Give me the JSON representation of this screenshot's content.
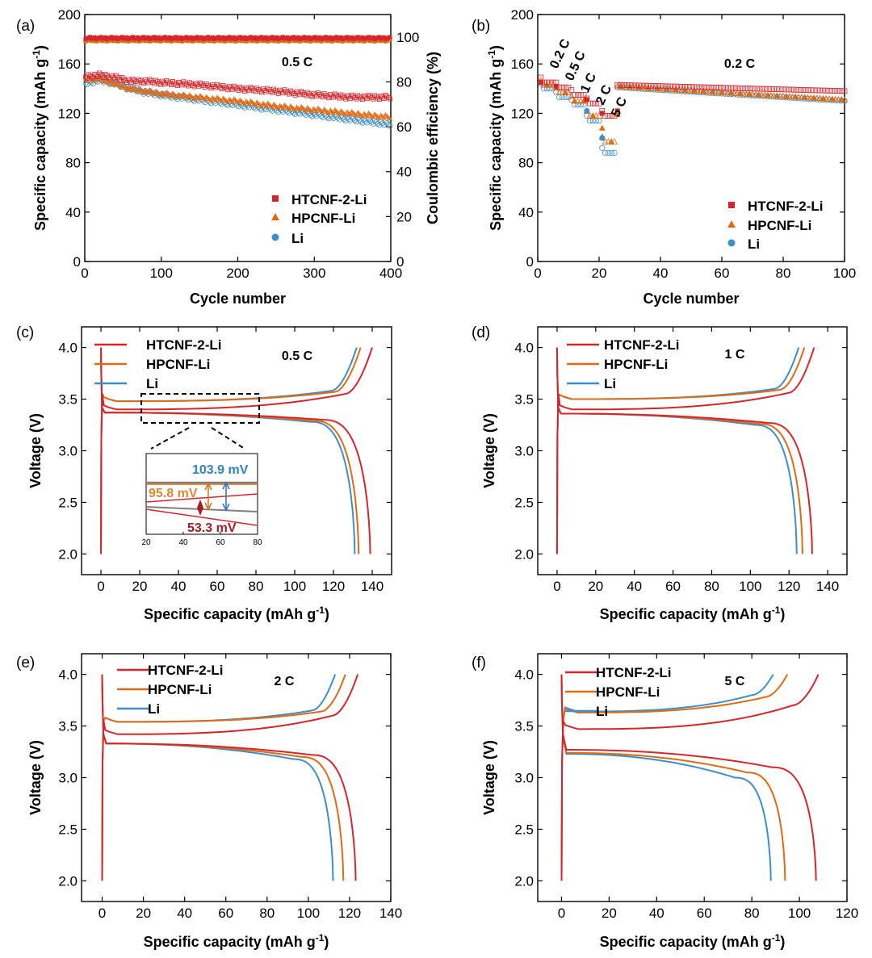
{
  "colors": {
    "htcnf": "#d7262b",
    "hpcnf": "#e06b12",
    "li": "#3d8fc9",
    "gray": "#7f7f7f"
  },
  "chart_data": [
    {
      "id": "a",
      "type": "scatter",
      "panel_label": "(a)",
      "title": "0.5 C",
      "xlabel": "Cycle number",
      "ylabel": "Specific capacity (mAh g",
      "ylabel_sup": "-1",
      "ylabel_close": ")",
      "y2label": "Coulombic efficiency (%)",
      "xlim": [
        0,
        400
      ],
      "ylim": [
        0,
        200
      ],
      "y2lim": [
        0,
        110
      ],
      "xticks": [
        "0",
        "100",
        "200",
        "300",
        "400"
      ],
      "yticks": [
        "0",
        "40",
        "80",
        "120",
        "160",
        "200"
      ],
      "y2ticks": [
        "0",
        "20",
        "40",
        "60",
        "80",
        "100"
      ],
      "legend": [
        "HTCNF-2-Li",
        "HPCNF-Li",
        "Li"
      ],
      "series": [
        {
          "name": "HTCNF-2-Li",
          "capacity_x": [
            5,
            20,
            40,
            60,
            80,
            100,
            150,
            200,
            250,
            300,
            350,
            400
          ],
          "capacity_y": [
            150,
            151,
            149,
            146,
            146,
            145,
            143,
            140,
            138,
            135,
            133,
            133
          ],
          "ce": 100
        },
        {
          "name": "HPCNF-Li",
          "capacity_x": [
            5,
            20,
            40,
            60,
            80,
            100,
            150,
            200,
            250,
            300,
            350,
            400
          ],
          "capacity_y": [
            148,
            148,
            144,
            140,
            138,
            136,
            133,
            130,
            126,
            123,
            120,
            117
          ],
          "ce": 99
        },
        {
          "name": "Li",
          "capacity_x": [
            5,
            20,
            40,
            60,
            80,
            100,
            150,
            200,
            250,
            300,
            350,
            400
          ],
          "capacity_y": [
            145,
            147,
            144,
            140,
            137,
            135,
            131,
            127,
            123,
            119,
            115,
            111
          ],
          "ce": 99
        }
      ]
    },
    {
      "id": "b",
      "type": "scatter",
      "panel_label": "(b)",
      "title": "0.2 C",
      "xlabel": "Cycle number",
      "ylabel": "Specific capacity (mAh g",
      "ylabel_sup": "-1",
      "ylabel_close": ")",
      "xlim": [
        0,
        100
      ],
      "ylim": [
        0,
        200
      ],
      "xticks": [
        "0",
        "20",
        "40",
        "60",
        "80",
        "100"
      ],
      "yticks": [
        "0",
        "40",
        "80",
        "120",
        "160",
        "200"
      ],
      "rate_labels": [
        "0.2 C",
        "0.5 C",
        "1 C",
        "2 C",
        "5 C"
      ],
      "legend": [
        "HTCNF-2-Li",
        "HPCNF-Li",
        "Li"
      ],
      "series": [
        {
          "name": "HTCNF-2-Li",
          "steps": [
            [
              1,
              5,
              145
            ],
            [
              6,
              10,
              141
            ],
            [
              11,
              15,
              135
            ],
            [
              16,
              20,
              128
            ],
            [
              21,
              25,
              118
            ],
            [
              26,
              100,
              143,
              138
            ]
          ]
        },
        {
          "name": "HPCNF-Li",
          "steps": [
            [
              1,
              5,
              143
            ],
            [
              6,
              10,
              137
            ],
            [
              11,
              15,
              130
            ],
            [
              16,
              20,
              118
            ],
            [
              21,
              25,
              97
            ],
            [
              26,
              100,
              142,
              131
            ]
          ]
        },
        {
          "name": "Li",
          "steps": [
            [
              1,
              5,
              140
            ],
            [
              6,
              10,
              133
            ],
            [
              11,
              15,
              127
            ],
            [
              16,
              20,
              114
            ],
            [
              21,
              25,
              88
            ],
            [
              26,
              100,
              141,
              130
            ]
          ]
        }
      ]
    },
    {
      "id": "c",
      "type": "line",
      "panel_label": "(c)",
      "title": "0.5 C",
      "xlabel": "Specific capacity (mAh g",
      "xlabel_sup": "-1",
      "xlabel_close": ")",
      "ylabel": "Voltage (V)",
      "xlim": [
        -10,
        150
      ],
      "ylim": [
        1.8,
        4.2
      ],
      "xticks": [
        "0",
        "20",
        "40",
        "60",
        "80",
        "100",
        "120",
        "140"
      ],
      "yticks": [
        "2.0",
        "2.5",
        "3.0",
        "3.5",
        "4.0"
      ],
      "legend": [
        "HTCNF-2-Li",
        "HPCNF-Li",
        "Li"
      ],
      "series": [
        {
          "name": "HTCNF-2-Li",
          "charge_plateau": 3.4,
          "charge_rise": 3.55,
          "cmax": 140,
          "discharge_plateau": 3.37,
          "discharge_knee": 3.3
        },
        {
          "name": "HPCNF-Li",
          "charge_plateau": 3.48,
          "charge_rise": 3.57,
          "cmax": 134,
          "discharge_plateau": 3.37,
          "discharge_knee": 3.29
        },
        {
          "name": "Li",
          "charge_plateau": 3.48,
          "charge_rise": 3.58,
          "cmax": 132,
          "discharge_plateau": 3.37,
          "discharge_knee": 3.28
        }
      ],
      "inset": {
        "xticks": [
          "20",
          "40",
          "60",
          "80"
        ],
        "annotations": [
          {
            "text": "103.9 mV",
            "series": "Li"
          },
          {
            "text": "95.8 mV",
            "series": "HPCNF-Li"
          },
          {
            "text": "53.3 mV",
            "series": "HTCNF-2-Li"
          }
        ]
      }
    },
    {
      "id": "d",
      "type": "line",
      "panel_label": "(d)",
      "title": "1 C",
      "xlabel": "Specific capacity (mAh g",
      "xlabel_sup": "-1",
      "xlabel_close": ")",
      "ylabel": "Voltage (V)",
      "xlim": [
        -10,
        150
      ],
      "ylim": [
        1.8,
        4.2
      ],
      "xticks": [
        "0",
        "20",
        "40",
        "60",
        "80",
        "100",
        "120",
        "140"
      ],
      "yticks": [
        "2.0",
        "2.5",
        "3.0",
        "3.5",
        "4.0"
      ],
      "legend": [
        "HTCNF-2-Li",
        "HPCNF-Li",
        "Li"
      ],
      "series": [
        {
          "name": "HTCNF-2-Li",
          "charge_plateau": 3.4,
          "charge_rise": 3.56,
          "cmax": 133,
          "discharge_plateau": 3.36,
          "discharge_knee": 3.27
        },
        {
          "name": "HPCNF-Li",
          "charge_plateau": 3.5,
          "charge_rise": 3.59,
          "cmax": 128,
          "discharge_plateau": 3.36,
          "discharge_knee": 3.26
        },
        {
          "name": "Li",
          "charge_plateau": 3.5,
          "charge_rise": 3.6,
          "cmax": 125,
          "discharge_plateau": 3.36,
          "discharge_knee": 3.25
        }
      ]
    },
    {
      "id": "e",
      "type": "line",
      "panel_label": "(e)",
      "title": "2 C",
      "xlabel": "Specific capacity (mAh g",
      "xlabel_sup": "-1",
      "xlabel_close": ")",
      "ylabel": "Voltage (V)",
      "xlim": [
        -10,
        140
      ],
      "ylim": [
        1.8,
        4.2
      ],
      "xticks": [
        "0",
        "20",
        "40",
        "60",
        "80",
        "100",
        "120",
        "140"
      ],
      "yticks": [
        "2.0",
        "2.5",
        "3.0",
        "3.5",
        "4.0"
      ],
      "legend": [
        "HTCNF-2-Li",
        "HPCNF-Li",
        "Li"
      ],
      "series": [
        {
          "name": "HTCNF-2-Li",
          "charge_plateau": 3.42,
          "charge_rise": 3.6,
          "cmax": 124,
          "discharge_plateau": 3.33,
          "discharge_knee": 3.22
        },
        {
          "name": "HPCNF-Li",
          "charge_plateau": 3.54,
          "charge_rise": 3.64,
          "cmax": 118,
          "discharge_plateau": 3.33,
          "discharge_knee": 3.2
        },
        {
          "name": "Li",
          "charge_plateau": 3.54,
          "charge_rise": 3.65,
          "cmax": 113,
          "discharge_plateau": 3.33,
          "discharge_knee": 3.18
        }
      ]
    },
    {
      "id": "f",
      "type": "line",
      "panel_label": "(f)",
      "title": "5 C",
      "xlabel": "Specific capacity (mAh g",
      "xlabel_sup": "-1",
      "xlabel_close": ")",
      "ylabel": "Voltage (V)",
      "xlim": [
        -10,
        120
      ],
      "ylim": [
        1.8,
        4.2
      ],
      "xticks": [
        "0",
        "20",
        "40",
        "60",
        "80",
        "100",
        "120"
      ],
      "yticks": [
        "2.0",
        "2.5",
        "3.0",
        "3.5",
        "4.0"
      ],
      "legend": [
        "HTCNF-2-Li",
        "HPCNF-Li",
        "Li"
      ],
      "series": [
        {
          "name": "HTCNF-2-Li",
          "charge_plateau": 3.47,
          "charge_rise": 3.7,
          "cmax": 108,
          "discharge_plateau": 3.27,
          "discharge_knee": 3.1
        },
        {
          "name": "HPCNF-Li",
          "charge_plateau": 3.63,
          "charge_rise": 3.78,
          "cmax": 95,
          "discharge_plateau": 3.24,
          "discharge_knee": 3.05
        },
        {
          "name": "Li",
          "charge_plateau": 3.64,
          "charge_rise": 3.8,
          "cmax": 89,
          "discharge_plateau": 3.23,
          "discharge_knee": 3.0
        }
      ]
    }
  ]
}
